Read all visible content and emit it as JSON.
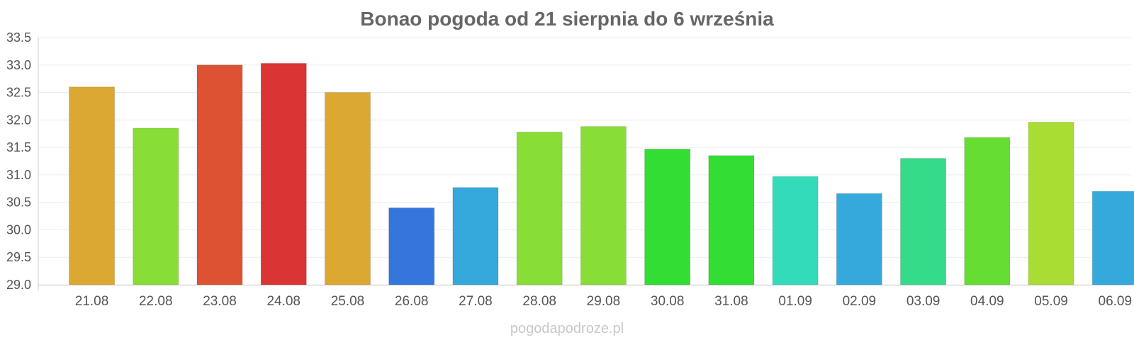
{
  "chart_data": {
    "type": "bar",
    "title": "Bonao pogoda od 21 sierpnia do 6 września",
    "xlabel": "",
    "ylabel": "",
    "ylim": [
      29.0,
      33.5
    ],
    "yticks": [
      "29.0",
      "29.5",
      "30.0",
      "30.5",
      "31.0",
      "31.5",
      "32.0",
      "32.5",
      "33.0",
      "33.5"
    ],
    "grid": true,
    "categories": [
      "21.08",
      "22.08",
      "23.08",
      "24.08",
      "25.08",
      "26.08",
      "27.08",
      "28.08",
      "29.08",
      "30.08",
      "31.08",
      "01.09",
      "02.09",
      "03.09",
      "04.09",
      "05.09",
      "06.09"
    ],
    "values": [
      32.6,
      31.85,
      33.0,
      33.03,
      32.5,
      30.4,
      30.77,
      31.78,
      31.88,
      31.47,
      31.35,
      30.97,
      30.66,
      31.3,
      31.68,
      31.96,
      30.7
    ],
    "colors": [
      "#dba832",
      "#88dd36",
      "#de5234",
      "#db3434",
      "#dba832",
      "#3576dc",
      "#36a9dc",
      "#88dd36",
      "#88dd36",
      "#33dd33",
      "#33dd33",
      "#34dbbb",
      "#36a9dc",
      "#34db88",
      "#66dd33",
      "#aadd33",
      "#36a9dc"
    ]
  },
  "watermark": "pogodapodroze.pl"
}
